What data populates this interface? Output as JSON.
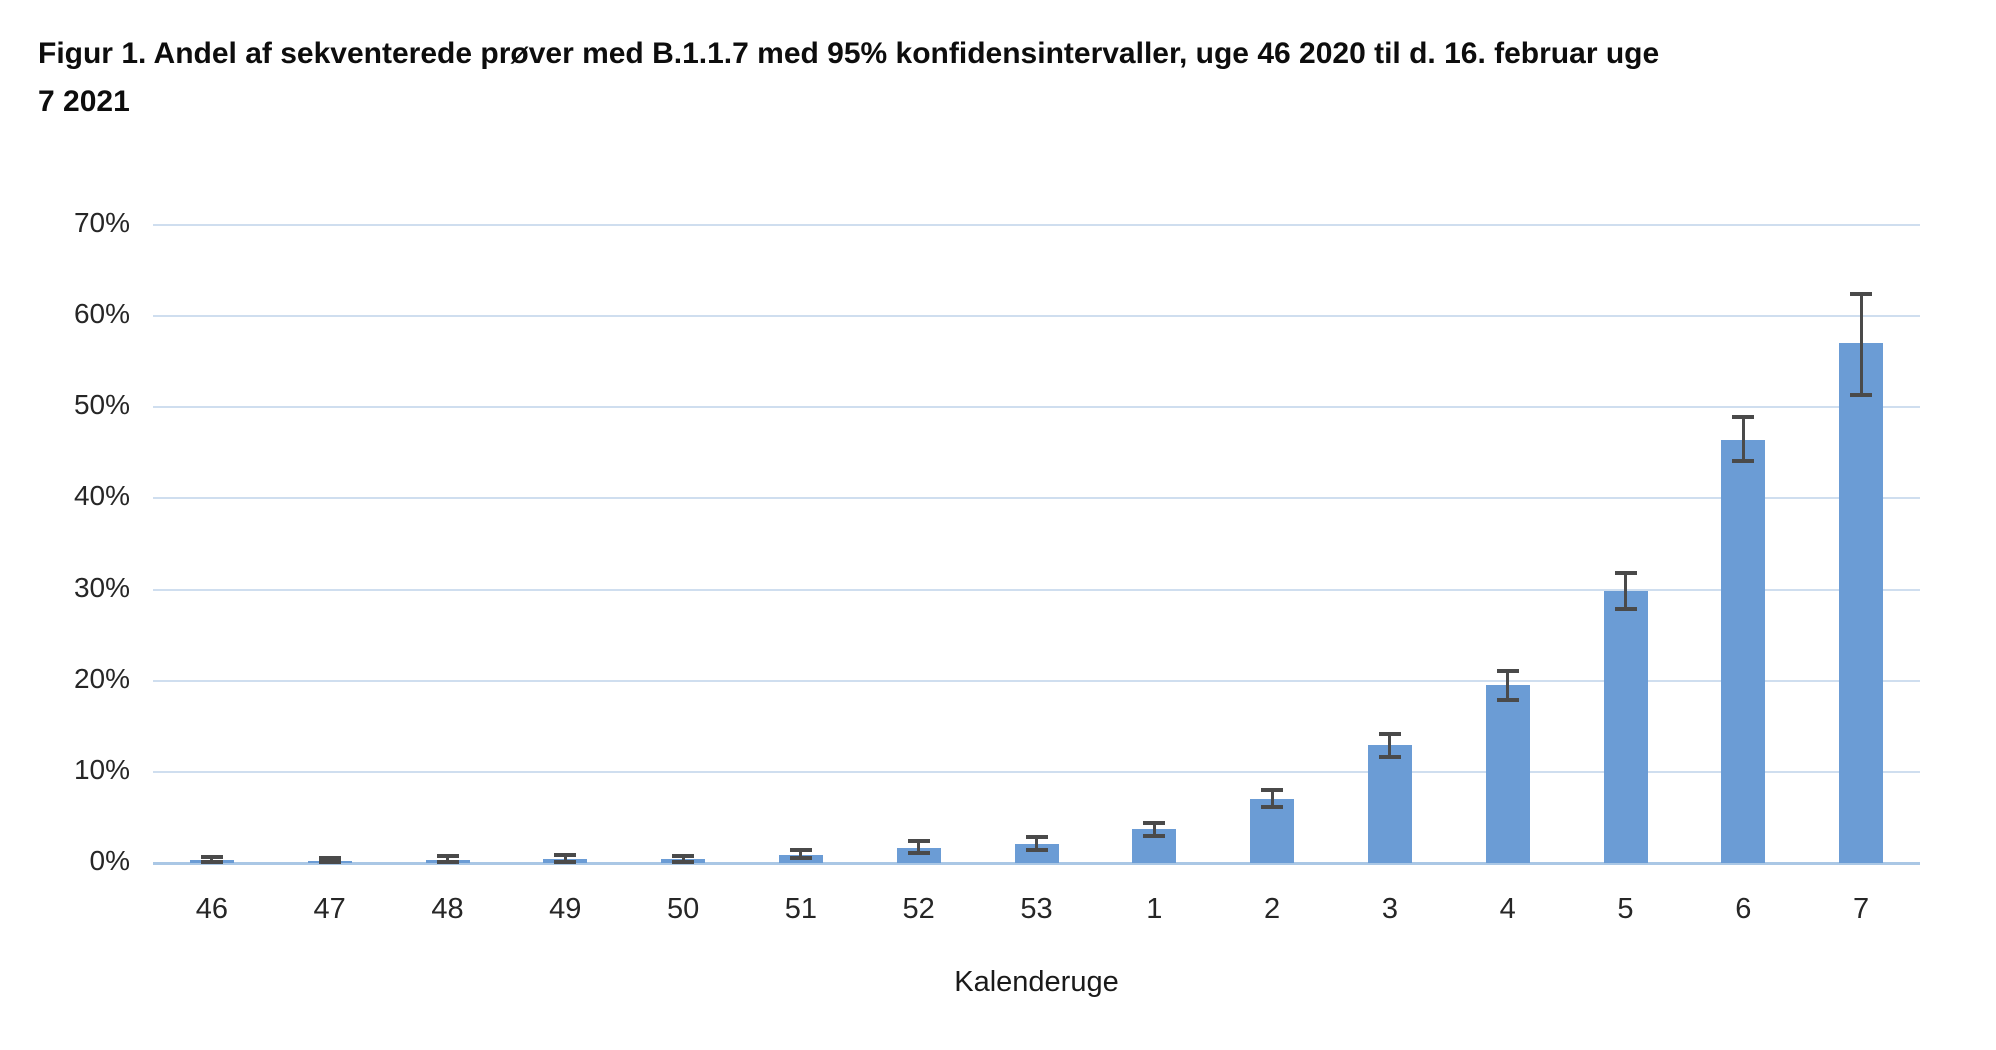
{
  "figure": {
    "title_line1": "Figur 1. Andel af sekventerede prøver med B.1.1.7 med 95% konfidensintervaller, uge 46 2020 til d. 16. februar uge",
    "title_line2": "7 2021"
  },
  "chart_data": {
    "type": "bar",
    "title": "Figur 1. Andel af sekventerede prøver med B.1.1.7 med 95% konfidensintervaller, uge 46 2020 til d. 16. februar uge 7 2021",
    "xlabel": "Kalenderuge",
    "ylabel": "",
    "ylim": [
      0,
      70
    ],
    "ytick_step": 10,
    "ytick_labels": [
      "0%",
      "10%",
      "20%",
      "30%",
      "40%",
      "50%",
      "60%",
      "70%"
    ],
    "grid": true,
    "legend": "none",
    "categories": [
      "46",
      "47",
      "48",
      "49",
      "50",
      "51",
      "52",
      "53",
      "1",
      "2",
      "3",
      "4",
      "5",
      "6",
      "7"
    ],
    "series": [
      {
        "name": "Andel af sekventerede prøver med B.1.1.7",
        "values": [
          0.3,
          0.2,
          0.3,
          0.4,
          0.4,
          0.9,
          1.7,
          2.1,
          3.7,
          7.0,
          12.9,
          19.5,
          29.8,
          46.4,
          57.0
        ],
        "ci_low": [
          0.1,
          0.1,
          0.1,
          0.1,
          0.1,
          0.5,
          1.1,
          1.4,
          3.0,
          6.1,
          11.6,
          17.9,
          27.9,
          44.1,
          51.3
        ],
        "ci_high": [
          0.7,
          0.6,
          0.8,
          0.9,
          0.8,
          1.4,
          2.4,
          2.9,
          4.4,
          8.0,
          14.1,
          21.1,
          31.8,
          48.9,
          62.4
        ]
      }
    ]
  },
  "colors": {
    "bar_fill": "#6b9cd5",
    "gridline": "#cfdeef",
    "zero_axis_line": "#aac7e5",
    "error_bar": "#4a4a4a",
    "title_text": "#0d0d0d",
    "tick_text": "#262626",
    "background": "#ffffff"
  }
}
